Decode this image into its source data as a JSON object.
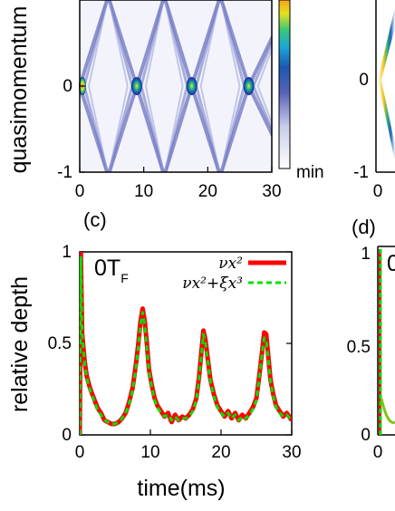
{
  "chart_data": [
    {
      "type": "heatmap",
      "panel_label": "",
      "ylabel": "quasimomentum",
      "xlabel": "",
      "x_ticks": [
        "0",
        "10",
        "20",
        "30"
      ],
      "y_ticks": [
        "0",
        "-1"
      ],
      "xlim": [
        0,
        30
      ],
      "ylim": [
        -1,
        1
      ],
      "colorbar_label": "min",
      "colormap": [
        "#ffffff",
        "#c8cdea",
        "#5a62b8",
        "#1d57b0",
        "#1aa7d8",
        "#39c67a",
        "#e4e21e",
        "#f7a11a"
      ],
      "peak_times": [
        0,
        8.9,
        17.5,
        26.4
      ],
      "wave_speed": 0.2
    },
    {
      "type": "line",
      "panel_label": "(c)",
      "annotation": "0T",
      "annotation_sub": "F",
      "xlabel": "time(ms)",
      "ylabel": "relative depth",
      "x_ticks": [
        "0",
        "10",
        "20",
        "30"
      ],
      "y_ticks": [
        "1",
        "0.5",
        "0"
      ],
      "xlim": [
        0,
        30
      ],
      "ylim": [
        0,
        1
      ],
      "series": [
        {
          "name": "νx²",
          "color": "#ff0000",
          "style": "solid",
          "x": [
            0,
            0.15,
            0.35,
            0.7,
            1,
            1.5,
            2,
            2.5,
            3,
            3.5,
            4,
            4.5,
            5,
            5.5,
            6,
            6.5,
            7,
            7.5,
            8,
            8.3,
            8.6,
            8.9,
            9.2,
            9.5,
            9.8,
            10.2,
            10.6,
            11,
            11.5,
            12,
            12.5,
            13,
            13.5,
            14,
            14.5,
            15,
            15.5,
            16,
            16.5,
            16.9,
            17.2,
            17.5,
            17.8,
            18.1,
            18.5,
            19,
            19.5,
            20,
            20.5,
            21,
            21.5,
            22,
            22.5,
            23,
            23.5,
            24,
            24.5,
            25,
            25.4,
            25.8,
            26.1,
            26.4,
            26.7,
            27,
            27.4,
            27.8,
            28.3,
            28.8,
            29.3,
            30
          ],
          "y": [
            0,
            1.0,
            0.55,
            0.4,
            0.32,
            0.25,
            0.2,
            0.15,
            0.12,
            0.08,
            0.07,
            0.06,
            0.06,
            0.07,
            0.09,
            0.12,
            0.18,
            0.26,
            0.4,
            0.5,
            0.62,
            0.69,
            0.62,
            0.5,
            0.36,
            0.27,
            0.2,
            0.16,
            0.13,
            0.1,
            0.12,
            0.07,
            0.11,
            0.08,
            0.1,
            0.09,
            0.11,
            0.14,
            0.2,
            0.32,
            0.45,
            0.57,
            0.52,
            0.42,
            0.3,
            0.22,
            0.16,
            0.13,
            0.1,
            0.13,
            0.09,
            0.12,
            0.08,
            0.11,
            0.09,
            0.12,
            0.15,
            0.2,
            0.32,
            0.45,
            0.56,
            0.55,
            0.42,
            0.3,
            0.22,
            0.16,
            0.13,
            0.1,
            0.12,
            0.08
          ]
        },
        {
          "name": "νx²+ξx³",
          "color": "#00e000",
          "style": "dashed",
          "x": [
            0,
            0.15,
            0.35,
            0.7,
            1,
            1.5,
            2,
            2.5,
            3,
            3.5,
            4,
            4.5,
            5,
            5.5,
            6,
            6.5,
            7,
            7.5,
            8,
            8.3,
            8.6,
            8.9,
            9.2,
            9.5,
            9.8,
            10.2,
            10.6,
            11,
            11.5,
            12,
            12.5,
            13,
            13.5,
            14,
            14.5,
            15,
            15.5,
            16,
            16.5,
            16.9,
            17.2,
            17.5,
            17.8,
            18.1,
            18.5,
            19,
            19.5,
            20,
            20.5,
            21,
            21.5,
            22,
            22.5,
            23,
            23.5,
            24,
            24.5,
            25,
            25.4,
            25.8,
            26.1,
            26.4,
            26.7,
            27,
            27.4,
            27.8,
            28.3,
            28.8,
            29.3,
            30
          ],
          "y": [
            0,
            0.97,
            0.54,
            0.39,
            0.31,
            0.24,
            0.19,
            0.14,
            0.11,
            0.08,
            0.07,
            0.06,
            0.06,
            0.07,
            0.09,
            0.12,
            0.17,
            0.25,
            0.38,
            0.48,
            0.6,
            0.67,
            0.6,
            0.48,
            0.35,
            0.26,
            0.19,
            0.15,
            0.12,
            0.1,
            0.11,
            0.08,
            0.1,
            0.08,
            0.09,
            0.09,
            0.1,
            0.13,
            0.19,
            0.31,
            0.44,
            0.55,
            0.5,
            0.41,
            0.29,
            0.21,
            0.15,
            0.12,
            0.1,
            0.12,
            0.09,
            0.11,
            0.08,
            0.1,
            0.09,
            0.11,
            0.14,
            0.19,
            0.31,
            0.44,
            0.53,
            0.52,
            0.4,
            0.29,
            0.21,
            0.15,
            0.12,
            0.1,
            0.11,
            0.08
          ]
        }
      ]
    },
    {
      "type": "heatmap",
      "panel_label": "",
      "ylabel": "",
      "x_ticks": [
        "0"
      ],
      "y_ticks": [
        "0",
        "-1"
      ],
      "note": "partially visible colored panel cut off at right edge"
    },
    {
      "type": "line",
      "panel_label": "(d)",
      "annotation": "0",
      "x_ticks": [
        "0"
      ],
      "y_ticks": [
        "1",
        "0.5",
        "0"
      ],
      "note": "partially visible line panel cut off at right edge"
    }
  ]
}
